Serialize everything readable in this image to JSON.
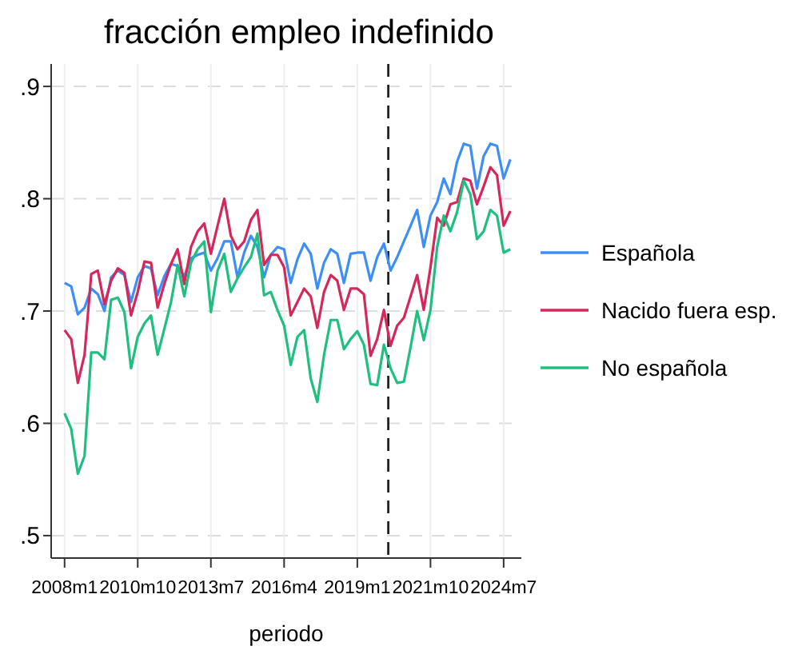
{
  "chart_data": {
    "type": "line",
    "title": "fracción empleo indefinido",
    "xlabel": "periodo",
    "x": [
      "2008-01",
      "2008-04",
      "2008-07",
      "2008-10",
      "2009-01",
      "2009-04",
      "2009-07",
      "2009-10",
      "2010-01",
      "2010-04",
      "2010-07",
      "2010-10",
      "2011-01",
      "2011-04",
      "2011-07",
      "2011-10",
      "2012-01",
      "2012-04",
      "2012-07",
      "2012-10",
      "2013-01",
      "2013-04",
      "2013-07",
      "2013-10",
      "2014-01",
      "2014-04",
      "2014-07",
      "2014-10",
      "2015-01",
      "2015-04",
      "2015-07",
      "2015-10",
      "2016-01",
      "2016-04",
      "2016-07",
      "2016-10",
      "2017-01",
      "2017-04",
      "2017-07",
      "2017-10",
      "2018-01",
      "2018-04",
      "2018-07",
      "2018-10",
      "2019-01",
      "2019-04",
      "2019-07",
      "2019-10",
      "2020-01",
      "2020-04",
      "2020-07",
      "2020-10",
      "2021-01",
      "2021-04",
      "2021-07",
      "2021-10",
      "2022-01",
      "2022-04",
      "2022-07",
      "2022-10",
      "2023-01",
      "2023-04",
      "2023-07",
      "2023-10",
      "2024-01",
      "2024-04",
      "2024-07",
      "2024-10"
    ],
    "series": [
      {
        "name": "Española",
        "color": "#3d8ef5",
        "values": [
          0.725,
          0.722,
          0.697,
          0.703,
          0.72,
          0.715,
          0.7,
          0.73,
          0.736,
          0.732,
          0.708,
          0.73,
          0.74,
          0.738,
          0.714,
          0.731,
          0.742,
          0.74,
          0.731,
          0.747,
          0.75,
          0.752,
          0.736,
          0.747,
          0.762,
          0.762,
          0.73,
          0.752,
          0.767,
          0.757,
          0.73,
          0.75,
          0.757,
          0.755,
          0.725,
          0.746,
          0.76,
          0.751,
          0.72,
          0.743,
          0.755,
          0.751,
          0.725,
          0.751,
          0.752,
          0.752,
          0.727,
          0.748,
          0.76,
          0.736,
          0.748,
          0.762,
          0.776,
          0.79,
          0.757,
          0.785,
          0.797,
          0.818,
          0.804,
          0.833,
          0.849,
          0.847,
          0.809,
          0.838,
          0.849,
          0.847,
          0.818,
          0.835
        ]
      },
      {
        "name": "Nacido fuera esp.",
        "color": "#d6275a",
        "values": [
          0.683,
          0.675,
          0.636,
          0.661,
          0.733,
          0.736,
          0.706,
          0.727,
          0.738,
          0.734,
          0.696,
          0.717,
          0.744,
          0.743,
          0.703,
          0.724,
          0.742,
          0.755,
          0.724,
          0.757,
          0.771,
          0.778,
          0.751,
          0.776,
          0.8,
          0.767,
          0.755,
          0.762,
          0.781,
          0.79,
          0.741,
          0.75,
          0.75,
          0.739,
          0.696,
          0.708,
          0.72,
          0.713,
          0.685,
          0.717,
          0.732,
          0.727,
          0.701,
          0.72,
          0.72,
          0.715,
          0.66,
          0.675,
          0.701,
          0.669,
          0.687,
          0.694,
          0.713,
          0.732,
          0.701,
          0.739,
          0.783,
          0.776,
          0.795,
          0.797,
          0.818,
          0.816,
          0.795,
          0.811,
          0.828,
          0.821,
          0.776,
          0.789
        ]
      },
      {
        "name": "No española",
        "color": "#1fbf7f",
        "values": [
          0.609,
          0.595,
          0.555,
          0.571,
          0.663,
          0.663,
          0.657,
          0.71,
          0.712,
          0.699,
          0.649,
          0.677,
          0.689,
          0.696,
          0.661,
          0.684,
          0.708,
          0.741,
          0.713,
          0.743,
          0.755,
          0.762,
          0.699,
          0.736,
          0.751,
          0.717,
          0.729,
          0.739,
          0.748,
          0.769,
          0.714,
          0.717,
          0.701,
          0.687,
          0.652,
          0.677,
          0.683,
          0.64,
          0.619,
          0.661,
          0.692,
          0.692,
          0.666,
          0.675,
          0.682,
          0.67,
          0.635,
          0.634,
          0.67,
          0.649,
          0.636,
          0.637,
          0.668,
          0.7,
          0.674,
          0.701,
          0.757,
          0.785,
          0.771,
          0.788,
          0.816,
          0.804,
          0.764,
          0.771,
          0.79,
          0.785,
          0.752,
          0.755
        ]
      }
    ],
    "xlim": [
      "2007-07",
      "2025-03"
    ],
    "xticks": [
      {
        "value": "2008-01",
        "label": "2008m1"
      },
      {
        "value": "2010-10",
        "label": "2010m10"
      },
      {
        "value": "2013-07",
        "label": "2013m7"
      },
      {
        "value": "2016-04",
        "label": "2016m4"
      },
      {
        "value": "2019-01",
        "label": "2019m1"
      },
      {
        "value": "2021-10",
        "label": "2021m10"
      },
      {
        "value": "2024-07",
        "label": "2024m7"
      }
    ],
    "ylim": [
      0.48,
      0.92
    ],
    "yticks": [
      {
        "value": 0.5,
        "label": ".5"
      },
      {
        "value": 0.6,
        "label": ".6"
      },
      {
        "value": 0.7,
        "label": ".7"
      },
      {
        "value": 0.8,
        "label": ".8"
      },
      {
        "value": 0.9,
        "label": ".9"
      }
    ],
    "ref_lines": [
      {
        "axis": "x",
        "value": "2020-03",
        "color": "#222222",
        "line_style": "dashed"
      }
    ],
    "grid": true,
    "legend": "right",
    "line_style": "solid",
    "marker": "none"
  }
}
